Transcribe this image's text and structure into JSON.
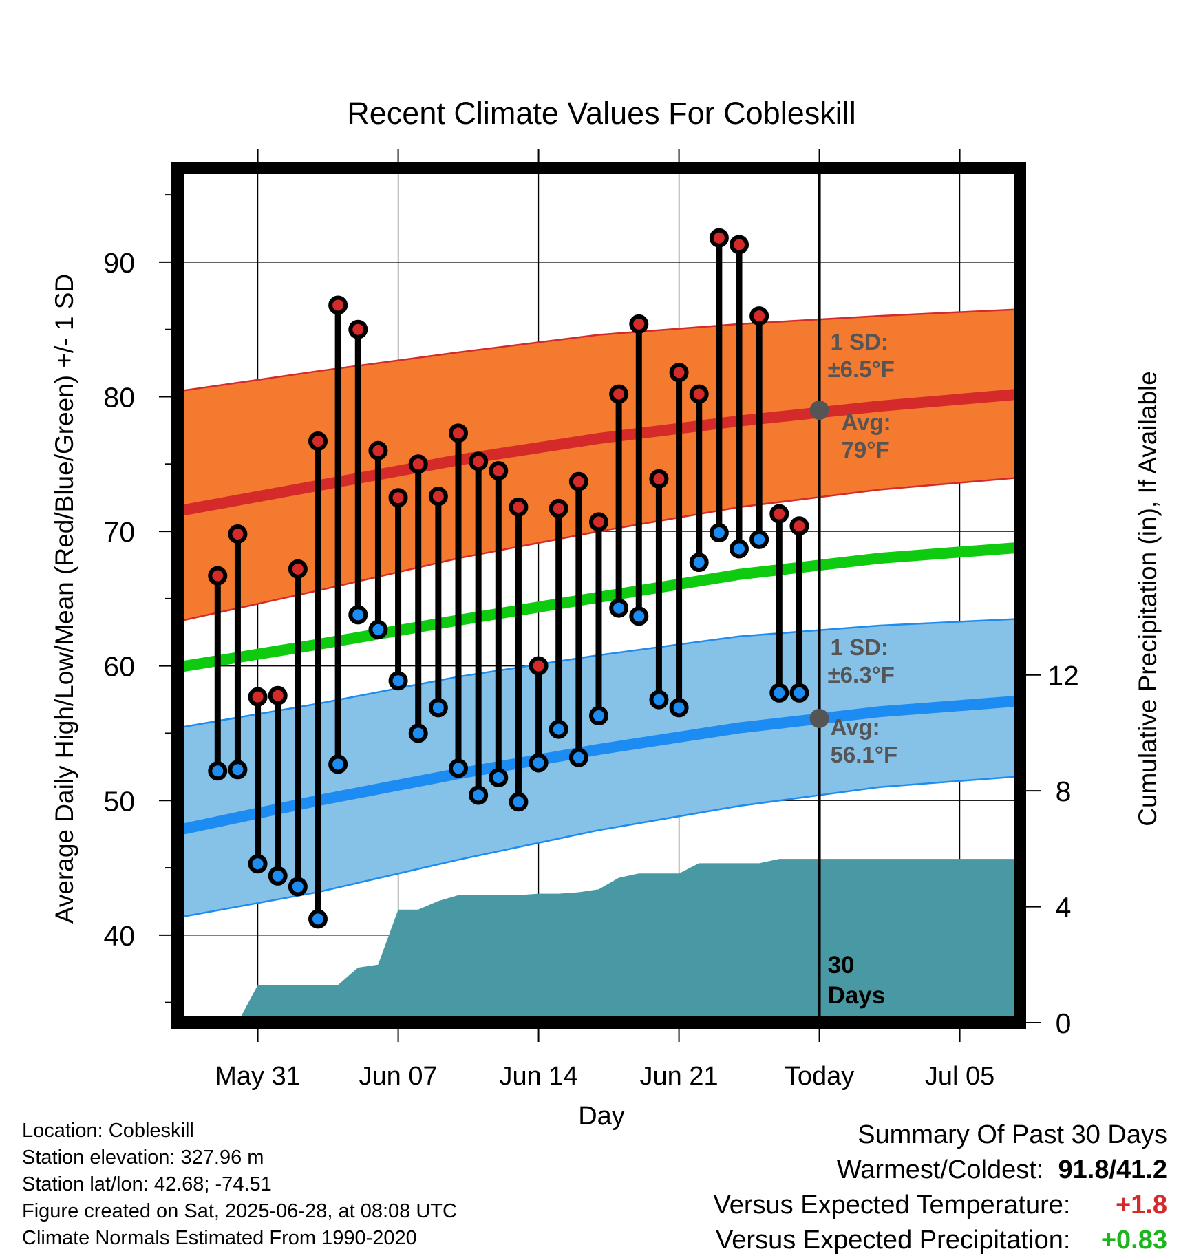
{
  "chart_data": {
    "type": "line",
    "title": "Recent Climate Values For Cobleskill",
    "xlabel": "Day",
    "ylabel": "Average Daily High/Low/Mean (Red/Blue/Green) +/- 1 SD",
    "y2label": "Cumulative Precipitation (in), If Available",
    "ylim": [
      33.5,
      97
    ],
    "y2lim": [
      0,
      29.5
    ],
    "yticks": [
      40,
      50,
      60,
      70,
      80,
      90
    ],
    "y2ticks": [
      0,
      4,
      8,
      12
    ],
    "xlim": [
      "2025-05-27",
      "2025-07-08"
    ],
    "xtick_labels": [
      {
        "date": "2025-05-31",
        "label": "May 31"
      },
      {
        "date": "2025-06-07",
        "label": "Jun 07"
      },
      {
        "date": "2025-06-14",
        "label": "Jun 14"
      },
      {
        "date": "2025-06-21",
        "label": "Jun 21"
      },
      {
        "date": "2025-06-28",
        "label": "Today"
      },
      {
        "date": "2025-07-05",
        "label": "Jul 05"
      }
    ],
    "grid": true,
    "today": "2025-06-28",
    "today_label": "30 Days",
    "colors": {
      "high_band": "#f47a30",
      "high_line": "#d42a2a",
      "low_band": "#86c1e8",
      "low_line": "#1c8cf2",
      "mean_line": "#0fcb0f",
      "precip": "#4899a3",
      "high_dot": "#d42a2a",
      "low_dot": "#1c8cf2",
      "avg_marker": "#555555",
      "annotation": "#555555",
      "positive_temp": "#d42a2a",
      "positive_precip": "#1cb51c"
    },
    "normals": {
      "dates": [
        "2025-05-27",
        "2025-06-03",
        "2025-06-10",
        "2025-06-17",
        "2025-06-24",
        "2025-07-01",
        "2025-07-08"
      ],
      "high_avg": [
        71.5,
        73.4,
        75.3,
        76.9,
        78.2,
        79.3,
        80.2
      ],
      "high_upper": [
        80.4,
        81.9,
        83.3,
        84.6,
        85.4,
        86.0,
        86.5
      ],
      "high_lower": [
        63.3,
        65.6,
        68.0,
        70.0,
        71.8,
        73.1,
        74.0
      ],
      "mean_avg": [
        59.9,
        61.6,
        63.4,
        65.1,
        66.8,
        68.0,
        68.8
      ],
      "low_avg": [
        47.8,
        50.0,
        52.0,
        53.8,
        55.4,
        56.6,
        57.4
      ],
      "low_upper": [
        55.4,
        57.2,
        59.2,
        60.8,
        62.2,
        63.0,
        63.5
      ],
      "low_lower": [
        41.3,
        43.2,
        45.6,
        47.8,
        49.6,
        51.0,
        51.8
      ]
    },
    "series": [
      {
        "name": "High",
        "dates": [
          "2025-05-29",
          "2025-05-30",
          "2025-05-31",
          "2025-06-01",
          "2025-06-02",
          "2025-06-03",
          "2025-06-04",
          "2025-06-05",
          "2025-06-06",
          "2025-06-07",
          "2025-06-08",
          "2025-06-09",
          "2025-06-10",
          "2025-06-11",
          "2025-06-12",
          "2025-06-13",
          "2025-06-14",
          "2025-06-15",
          "2025-06-16",
          "2025-06-17",
          "2025-06-18",
          "2025-06-19",
          "2025-06-20",
          "2025-06-21",
          "2025-06-22",
          "2025-06-23",
          "2025-06-24",
          "2025-06-25",
          "2025-06-26",
          "2025-06-27"
        ],
        "values": [
          66.7,
          69.8,
          57.7,
          57.8,
          67.2,
          76.7,
          86.8,
          85.0,
          76.0,
          72.5,
          75.0,
          72.6,
          77.3,
          75.2,
          74.5,
          71.8,
          60.0,
          71.7,
          73.7,
          70.7,
          80.2,
          85.4,
          73.9,
          81.8,
          80.2,
          91.8,
          91.3,
          86.0,
          71.3,
          70.4
        ]
      },
      {
        "name": "Low",
        "dates": [
          "2025-05-29",
          "2025-05-30",
          "2025-05-31",
          "2025-06-01",
          "2025-06-02",
          "2025-06-03",
          "2025-06-04",
          "2025-06-05",
          "2025-06-06",
          "2025-06-07",
          "2025-06-08",
          "2025-06-09",
          "2025-06-10",
          "2025-06-11",
          "2025-06-12",
          "2025-06-13",
          "2025-06-14",
          "2025-06-15",
          "2025-06-16",
          "2025-06-17",
          "2025-06-18",
          "2025-06-19",
          "2025-06-20",
          "2025-06-21",
          "2025-06-22",
          "2025-06-23",
          "2025-06-24",
          "2025-06-25",
          "2025-06-26",
          "2025-06-27"
        ],
        "values": [
          52.2,
          52.3,
          45.3,
          44.4,
          43.6,
          41.2,
          52.7,
          63.8,
          62.7,
          58.9,
          55.0,
          56.9,
          52.4,
          50.4,
          51.7,
          49.9,
          52.8,
          55.3,
          53.2,
          56.3,
          64.3,
          63.7,
          57.5,
          56.9,
          67.7,
          69.9,
          68.7,
          69.4,
          58.0,
          58.0
        ]
      }
    ],
    "precipitation": {
      "dates": [
        "2025-05-28",
        "2025-05-29",
        "2025-05-30",
        "2025-05-31",
        "2025-06-01",
        "2025-06-02",
        "2025-06-03",
        "2025-06-04",
        "2025-06-05",
        "2025-06-06",
        "2025-06-07",
        "2025-06-08",
        "2025-06-09",
        "2025-06-10",
        "2025-06-11",
        "2025-06-12",
        "2025-06-13",
        "2025-06-14",
        "2025-06-15",
        "2025-06-16",
        "2025-06-17",
        "2025-06-18",
        "2025-06-19",
        "2025-06-20",
        "2025-06-21",
        "2025-06-22",
        "2025-06-23",
        "2025-06-24",
        "2025-06-25",
        "2025-06-26",
        "2025-06-27",
        "2025-07-08"
      ],
      "values": [
        0,
        0,
        0,
        1.3,
        1.3,
        1.3,
        1.3,
        1.3,
        1.9,
        2.0,
        3.9,
        3.9,
        4.2,
        4.4,
        4.4,
        4.4,
        4.4,
        4.45,
        4.45,
        4.5,
        4.6,
        5.0,
        5.15,
        5.15,
        5.15,
        5.5,
        5.5,
        5.5,
        5.5,
        5.65,
        5.65,
        5.65
      ]
    },
    "annotations": {
      "high_sd": "1 SD:",
      "high_sd_value": "±6.5°F",
      "high_avg_label": "Avg:",
      "high_avg_value": "79°F",
      "high_avg_today": 79.0,
      "low_sd": "1 SD:",
      "low_sd_value": "±6.3°F",
      "low_avg_label": "Avg:",
      "low_avg_value": "56.1°F",
      "low_avg_today": 56.1
    }
  },
  "info": {
    "location": "Location: Cobleskill",
    "elevation": "Station elevation: 327.96 m",
    "latlon": "Station lat/lon: 42.68; -74.51",
    "created": "Figure created on Sat, 2025-06-28, at 08:08 UTC",
    "normals": "Climate Normals Estimated From 1990-2020"
  },
  "summary": {
    "title": "Summary Of Past 30 Days",
    "warm_cold_label": "Warmest/Coldest:",
    "warm_cold_value": "91.8/41.2",
    "temp_label": "Versus Expected Temperature:",
    "temp_value": "+1.8",
    "precip_label": "Versus Expected Precipitation:",
    "precip_value": "+0.83"
  }
}
